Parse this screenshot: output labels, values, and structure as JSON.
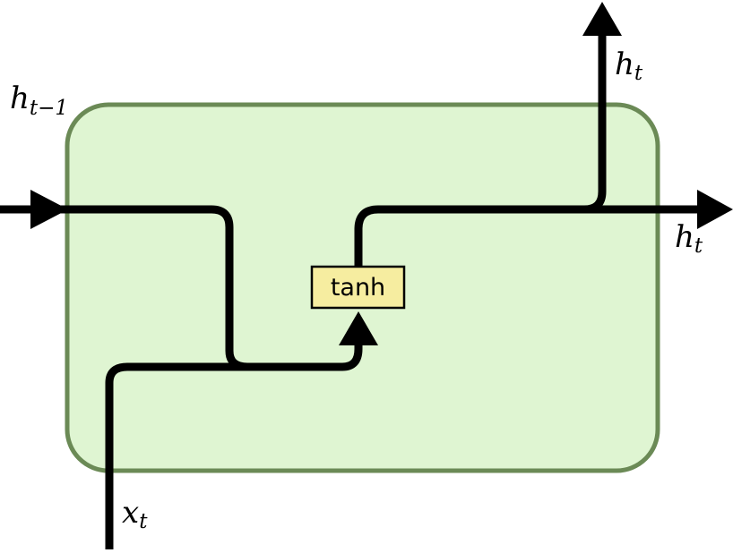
{
  "colors": {
    "cell_fill": "#dff5d2",
    "cell_stroke": "#6b8a56",
    "gate_fill": "#f6eda0",
    "gate_stroke": "#000000",
    "wire": "#000000"
  },
  "cell": {
    "operation_label": "tanh"
  },
  "labels": {
    "h_prev_main": "h",
    "h_prev_sub": "t−1",
    "x_in_main": "x",
    "x_in_sub": "t",
    "h_out_top_main": "h",
    "h_out_top_sub": "t",
    "h_out_right_main": "h",
    "h_out_right_sub": "t"
  }
}
